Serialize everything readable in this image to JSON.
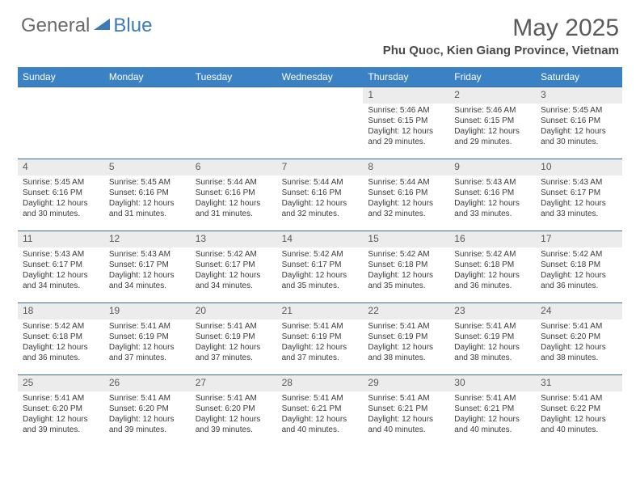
{
  "logo": {
    "general": "General",
    "blue": "Blue"
  },
  "title": "May 2025",
  "location": "Phu Quoc, Kien Giang Province, Vietnam",
  "colors": {
    "header_bar": "#3b82c4",
    "header_text": "#ffffff",
    "daynum_bg": "#ececec",
    "border": "#3b6a9a",
    "logo_gray": "#6a6a6a",
    "logo_blue": "#3a7ab8",
    "text": "#3a3a3a"
  },
  "weekdays": [
    "Sunday",
    "Monday",
    "Tuesday",
    "Wednesday",
    "Thursday",
    "Friday",
    "Saturday"
  ],
  "layout": {
    "first_weekday_index": 4,
    "days_in_month": 31,
    "fontsize_title": 30,
    "fontsize_location": 15,
    "fontsize_weekday": 12,
    "fontsize_daynum": 12,
    "fontsize_detail": 10
  },
  "days": [
    {
      "n": 1,
      "sr": "5:46 AM",
      "ss": "6:15 PM",
      "dl": "12 hours and 29 minutes."
    },
    {
      "n": 2,
      "sr": "5:46 AM",
      "ss": "6:15 PM",
      "dl": "12 hours and 29 minutes."
    },
    {
      "n": 3,
      "sr": "5:45 AM",
      "ss": "6:16 PM",
      "dl": "12 hours and 30 minutes."
    },
    {
      "n": 4,
      "sr": "5:45 AM",
      "ss": "6:16 PM",
      "dl": "12 hours and 30 minutes."
    },
    {
      "n": 5,
      "sr": "5:45 AM",
      "ss": "6:16 PM",
      "dl": "12 hours and 31 minutes."
    },
    {
      "n": 6,
      "sr": "5:44 AM",
      "ss": "6:16 PM",
      "dl": "12 hours and 31 minutes."
    },
    {
      "n": 7,
      "sr": "5:44 AM",
      "ss": "6:16 PM",
      "dl": "12 hours and 32 minutes."
    },
    {
      "n": 8,
      "sr": "5:44 AM",
      "ss": "6:16 PM",
      "dl": "12 hours and 32 minutes."
    },
    {
      "n": 9,
      "sr": "5:43 AM",
      "ss": "6:16 PM",
      "dl": "12 hours and 33 minutes."
    },
    {
      "n": 10,
      "sr": "5:43 AM",
      "ss": "6:17 PM",
      "dl": "12 hours and 33 minutes."
    },
    {
      "n": 11,
      "sr": "5:43 AM",
      "ss": "6:17 PM",
      "dl": "12 hours and 34 minutes."
    },
    {
      "n": 12,
      "sr": "5:43 AM",
      "ss": "6:17 PM",
      "dl": "12 hours and 34 minutes."
    },
    {
      "n": 13,
      "sr": "5:42 AM",
      "ss": "6:17 PM",
      "dl": "12 hours and 34 minutes."
    },
    {
      "n": 14,
      "sr": "5:42 AM",
      "ss": "6:17 PM",
      "dl": "12 hours and 35 minutes."
    },
    {
      "n": 15,
      "sr": "5:42 AM",
      "ss": "6:18 PM",
      "dl": "12 hours and 35 minutes."
    },
    {
      "n": 16,
      "sr": "5:42 AM",
      "ss": "6:18 PM",
      "dl": "12 hours and 36 minutes."
    },
    {
      "n": 17,
      "sr": "5:42 AM",
      "ss": "6:18 PM",
      "dl": "12 hours and 36 minutes."
    },
    {
      "n": 18,
      "sr": "5:42 AM",
      "ss": "6:18 PM",
      "dl": "12 hours and 36 minutes."
    },
    {
      "n": 19,
      "sr": "5:41 AM",
      "ss": "6:19 PM",
      "dl": "12 hours and 37 minutes."
    },
    {
      "n": 20,
      "sr": "5:41 AM",
      "ss": "6:19 PM",
      "dl": "12 hours and 37 minutes."
    },
    {
      "n": 21,
      "sr": "5:41 AM",
      "ss": "6:19 PM",
      "dl": "12 hours and 37 minutes."
    },
    {
      "n": 22,
      "sr": "5:41 AM",
      "ss": "6:19 PM",
      "dl": "12 hours and 38 minutes."
    },
    {
      "n": 23,
      "sr": "5:41 AM",
      "ss": "6:19 PM",
      "dl": "12 hours and 38 minutes."
    },
    {
      "n": 24,
      "sr": "5:41 AM",
      "ss": "6:20 PM",
      "dl": "12 hours and 38 minutes."
    },
    {
      "n": 25,
      "sr": "5:41 AM",
      "ss": "6:20 PM",
      "dl": "12 hours and 39 minutes."
    },
    {
      "n": 26,
      "sr": "5:41 AM",
      "ss": "6:20 PM",
      "dl": "12 hours and 39 minutes."
    },
    {
      "n": 27,
      "sr": "5:41 AM",
      "ss": "6:20 PM",
      "dl": "12 hours and 39 minutes."
    },
    {
      "n": 28,
      "sr": "5:41 AM",
      "ss": "6:21 PM",
      "dl": "12 hours and 40 minutes."
    },
    {
      "n": 29,
      "sr": "5:41 AM",
      "ss": "6:21 PM",
      "dl": "12 hours and 40 minutes."
    },
    {
      "n": 30,
      "sr": "5:41 AM",
      "ss": "6:21 PM",
      "dl": "12 hours and 40 minutes."
    },
    {
      "n": 31,
      "sr": "5:41 AM",
      "ss": "6:22 PM",
      "dl": "12 hours and 40 minutes."
    }
  ],
  "labels": {
    "sunrise": "Sunrise:",
    "sunset": "Sunset:",
    "daylight": "Daylight:"
  }
}
